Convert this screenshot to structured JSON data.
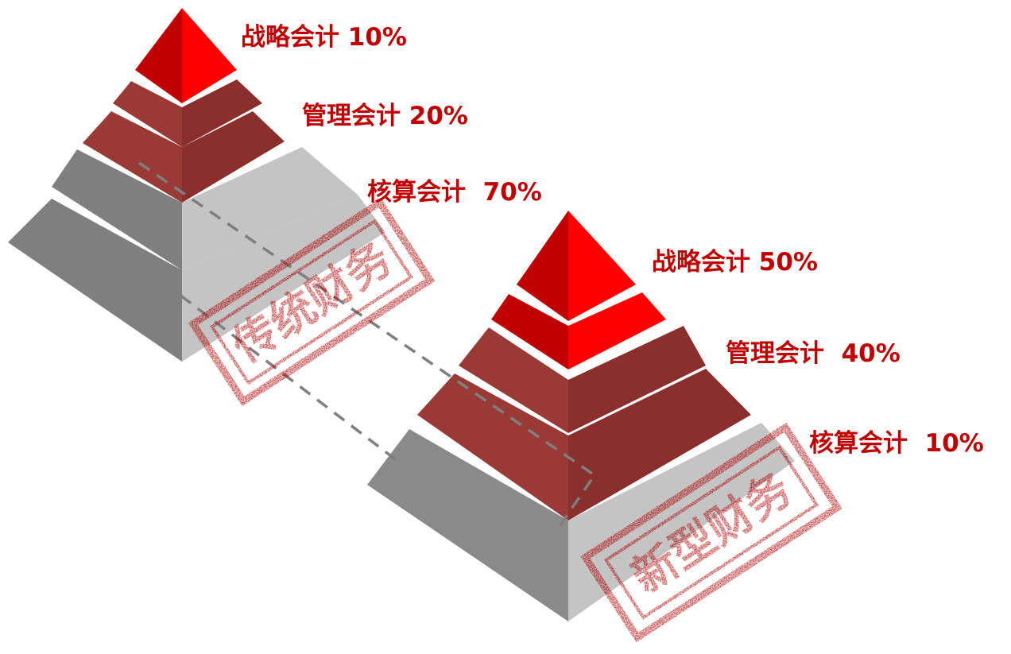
{
  "colors": {
    "label": "#c00000",
    "stamp": "#b00000",
    "top_light": "#ff0000",
    "top_dark": "#c00000",
    "brick_light": "#9a3a37",
    "brick_dark": "#8b2f2c",
    "gray_light": "#c4c4c4",
    "gray_dark": "#7f7f7f",
    "gray_mid": "#8a8a8a",
    "dash": "#7f7f7f"
  },
  "pyramids": [
    {
      "stamp": "传统财务",
      "tiers": [
        {
          "label": "战略会计 10%"
        },
        {
          "label": "管理会计 20%"
        },
        {
          "label": "核算会计  70%"
        }
      ]
    },
    {
      "stamp": "新型财务",
      "tiers": [
        {
          "label": "战略会计 50%"
        },
        {
          "label": "管理会计  40%"
        },
        {
          "label": "核算会计  10%"
        }
      ]
    }
  ]
}
